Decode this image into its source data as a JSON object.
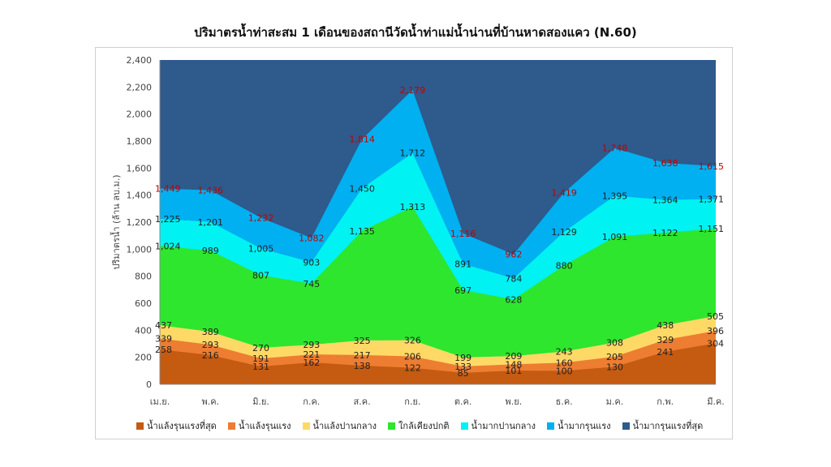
{
  "chart_data": {
    "type": "area",
    "stacked_cumulative": true,
    "title": "ปริมาตรน้ำท่าสะสม 1 เดือนของสถานีวัดน้ำท่าแม่น้ำน่านที่บ้านหาดสองแคว (N.60)",
    "xlabel": "",
    "ylabel": "ปริมาตรน้ำ (ล้าน ลบ.ม.)",
    "ylim": [
      0,
      2400
    ],
    "yticks": [
      "0",
      "200",
      "400",
      "600",
      "800",
      "1,000",
      "1,200",
      "1,400",
      "1,600",
      "1,800",
      "2,000",
      "2,200",
      "2,400"
    ],
    "categories": [
      "เม.ย.",
      "พ.ค.",
      "มิ.ย.",
      "ก.ค.",
      "ส.ค.",
      "ก.ย.",
      "ต.ค.",
      "พ.ย.",
      "ธ.ค.",
      "ม.ค.",
      "ก.พ.",
      "มี.ค."
    ],
    "series": [
      {
        "name": "น้ำแล้งรุนแรงที่สุด",
        "color": "#c55a11",
        "values": [
          258,
          216,
          131,
          162,
          138,
          122,
          85,
          101,
          100,
          130,
          241,
          304
        ],
        "labels": [
          "258",
          "216",
          "131",
          "162",
          "138",
          "122",
          "85",
          "101",
          "100",
          "130",
          "241",
          "304"
        ]
      },
      {
        "name": "น้ำแล้งรุนแรง",
        "color": "#ed7d31",
        "values": [
          339,
          293,
          191,
          221,
          217,
          206,
          133,
          148,
          160,
          205,
          329,
          396
        ],
        "labels": [
          "339",
          "293",
          "191",
          "221",
          "217",
          "206",
          "133",
          "148",
          "160",
          "205",
          "329",
          "396"
        ]
      },
      {
        "name": "น้ำแล้งปานกลาง",
        "color": "#ffd966",
        "values": [
          437,
          389,
          270,
          293,
          325,
          326,
          199,
          209,
          243,
          308,
          438,
          505
        ],
        "labels": [
          "437",
          "389",
          "270",
          "293",
          "325",
          "326",
          "199",
          "209",
          "243",
          "308",
          "438",
          "505"
        ]
      },
      {
        "name": "ใกล้เคียงปกติ",
        "color": "#2ee62e",
        "values": [
          1024,
          989,
          807,
          745,
          1135,
          1313,
          697,
          628,
          880,
          1091,
          1122,
          1151
        ],
        "labels": [
          "1,024",
          "989",
          "807",
          "745",
          "1,135",
          "1,313",
          "697",
          "628",
          "880",
          "1,091",
          "1,122",
          "1,151"
        ]
      },
      {
        "name": "น้ำมากปานกลาง",
        "color": "#00f2f2",
        "values": [
          1225,
          1201,
          1005,
          903,
          1450,
          1712,
          891,
          784,
          1129,
          1395,
          1364,
          1371
        ],
        "labels": [
          "1,225",
          "1,201",
          "1,005",
          "903",
          "1,450",
          "1,712",
          "891",
          "784",
          "1,129",
          "1,395",
          "1,364",
          "1,371"
        ]
      },
      {
        "name": "น้ำมากรุนแรง",
        "color": "#00b0f0",
        "values": [
          1449,
          1436,
          1232,
          1082,
          1814,
          2179,
          1116,
          962,
          1419,
          1748,
          1638,
          1615
        ],
        "labels": [
          "1,449",
          "1,436",
          "1,232",
          "1,082",
          "1,814",
          "2,179",
          "1,116",
          "962",
          "1,419",
          "1,748",
          "1,638",
          "1,615"
        ]
      },
      {
        "name": "น้ำมากรุนแรงที่สุด",
        "color": "#2e5a8c",
        "values": [
          2400,
          2400,
          2400,
          2400,
          2400,
          2400,
          2400,
          2400,
          2400,
          2400,
          2400,
          2400
        ],
        "labels": []
      }
    ],
    "label_colors": {
      "default": "#222222",
      "top_boundary": "#c00000"
    },
    "grid": false,
    "legend": "bottom"
  }
}
